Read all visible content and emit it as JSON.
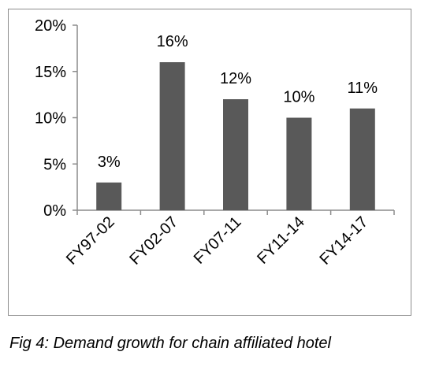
{
  "chart_data": {
    "type": "bar",
    "categories": [
      "FY97-02",
      "FY02-07",
      "FY07-11",
      "FY11-14",
      "FY14-17"
    ],
    "values": [
      3,
      16,
      12,
      10,
      11
    ],
    "data_labels": [
      "3%",
      "16%",
      "12%",
      "10%",
      "11%"
    ],
    "ylim": [
      0,
      20
    ],
    "yticks": [
      0,
      5,
      10,
      15,
      20
    ],
    "ytick_labels": [
      "0%",
      "5%",
      "10%",
      "15%",
      "20%"
    ],
    "bar_color": "#595959",
    "grid": false,
    "legend": "none"
  },
  "caption": "Fig 4: Demand growth for chain affiliated hotel"
}
